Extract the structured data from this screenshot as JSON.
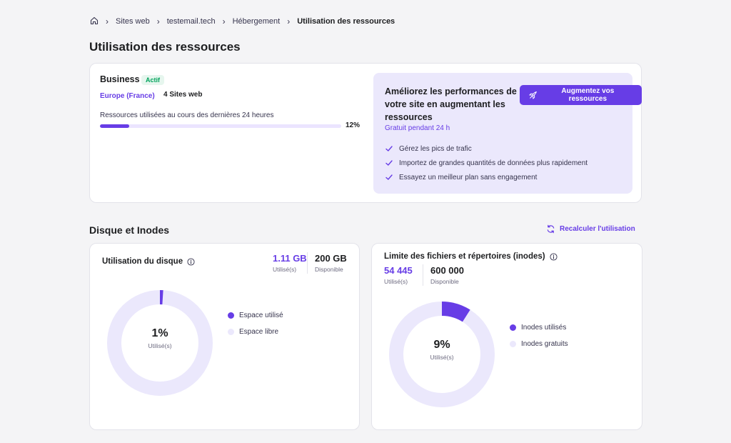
{
  "breadcrumb": {
    "items": [
      "Sites web",
      "testemail.tech",
      "Hébergement"
    ],
    "current": "Utilisation des ressources"
  },
  "page_title": "Utilisation des ressources",
  "plan": {
    "name": "Business",
    "status": "Actif",
    "region": "Europe (France)",
    "sites": "4 Sites web",
    "usage_label": "Ressources utilisées au cours des dernières 24 heures",
    "usage_percent": 12,
    "usage_percent_label": "12%"
  },
  "promo": {
    "title": "Améliorez les performances de votre site en augmentant les ressources",
    "subtitle": "Gratuit pendant 24 h",
    "button": "Augmentez vos ressources",
    "items": [
      "Gérez les pics de trafic",
      "Importez de grandes quantités de données plus rapidement",
      "Essayez un meilleur plan sans engagement"
    ]
  },
  "section": {
    "title": "Disque et Inodes",
    "recalc": "Recalculer l'utilisation"
  },
  "disk": {
    "title": "Utilisation du disque",
    "used_value": "1.11 GB",
    "used_label": "Utilisé(s)",
    "available_value": "200 GB",
    "available_label": "Disponible",
    "percent": 1,
    "percent_label": "1%",
    "center_label": "Utilisé(s)",
    "legend_used": "Espace utilisé",
    "legend_free": "Espace libre"
  },
  "inodes": {
    "title": "Limite des fichiers et répertoires (inodes)",
    "used_value": "54 445",
    "used_label": "Utilisé(s)",
    "available_value": "600 000",
    "available_label": "Disponible",
    "percent": 9,
    "percent_label": "9%",
    "center_label": "Utilisé(s)",
    "legend_used": "Inodes utilisés",
    "legend_free": "Inodes gratuits"
  },
  "colors": {
    "accent": "#673de6",
    "track": "#ebe8fc",
    "success": "#00a35c"
  }
}
